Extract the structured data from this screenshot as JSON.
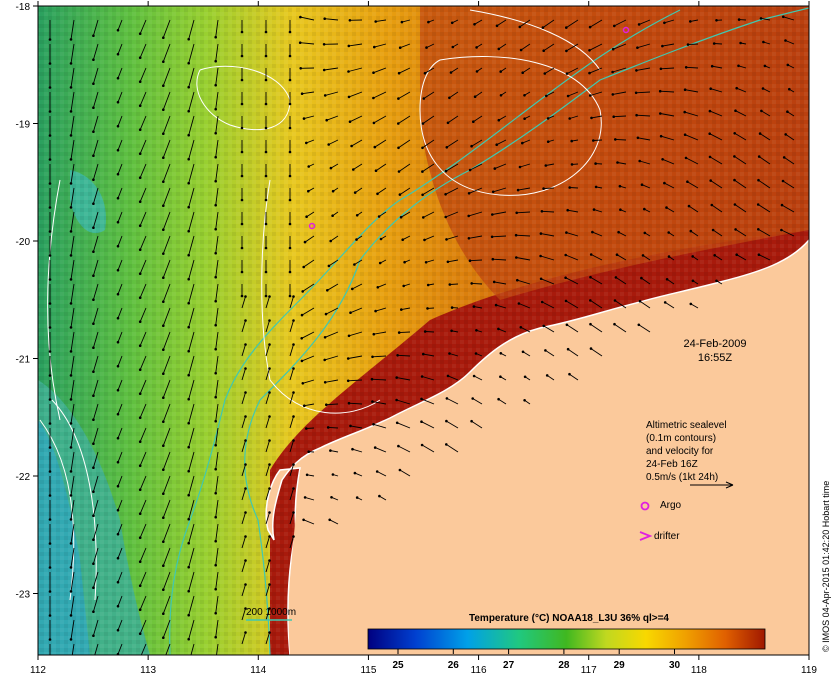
{
  "map": {
    "lon_ticks": [
      "112",
      "113",
      "114",
      "115",
      "116",
      "117",
      "118",
      "119"
    ],
    "lat_ticks": [
      "-18",
      "-19",
      "-20",
      "-21",
      "-22",
      "-23"
    ],
    "date_label": "24-Feb-2009",
    "time_label": "16:55Z",
    "legend": {
      "line1": "Altimetric sealevel",
      "line2": "(0.1m contours)",
      "line3": "and velocity for",
      "line4": "24-Feb 16Z",
      "line5": "0.5m/s (1kt 24h)",
      "argo_label": "Argo",
      "drifter_label": "drifter"
    },
    "bathy_label": "200  1000m",
    "colorbar": {
      "title": "Temperature (°C) NOAA18_L3U 36% ql>=4",
      "ticks": [
        "25",
        "26",
        "27",
        "28",
        "29",
        "30"
      ]
    },
    "credit": "© IMOS 04-Apr-2015 01:42:20 Hobart time",
    "colors": {
      "land": "#fbc99b",
      "warm": "#a81a0c",
      "argo": "#e020e0",
      "shelf_line": "#40c8b0"
    }
  }
}
